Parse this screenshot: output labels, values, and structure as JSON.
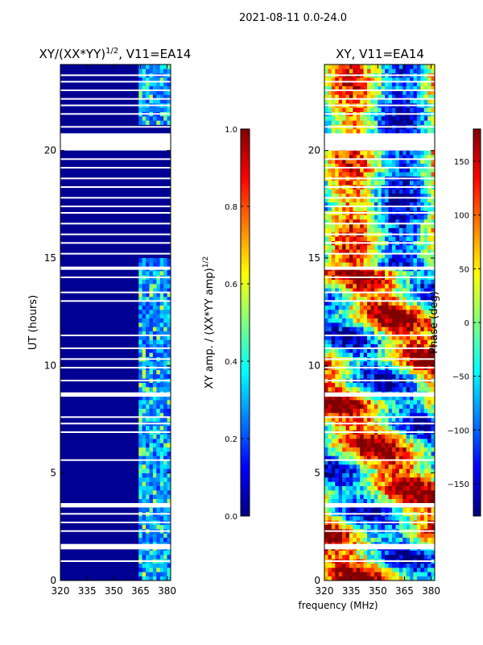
{
  "suptitle": "2021-08-11 0.0-24.0",
  "colormap": [
    "#00007f",
    "#0000ff",
    "#007fff",
    "#00ffff",
    "#7fff7f",
    "#ffff00",
    "#ff7f00",
    "#ff0000",
    "#7f0000"
  ],
  "chart_data": [
    {
      "type": "heatmap",
      "title_main": "XY/(XX*YY)",
      "title_sup": "1/2",
      "title_rest": ", V11=EA14",
      "xlabel": "",
      "ylabel": "UT (hours)",
      "xlim": [
        320,
        382
      ],
      "ylim": [
        0,
        24
      ],
      "xticks": [
        "320",
        "335",
        "350",
        "365",
        "380"
      ],
      "xtick_values": [
        320,
        335,
        350,
        365,
        380
      ],
      "yticks": [
        "0",
        "5",
        "10",
        "15",
        "20"
      ],
      "ytick_values": [
        0,
        5,
        10,
        15,
        20
      ],
      "data_band_mhz": [
        364,
        381
      ],
      "background_value": 0.02,
      "colorbar": {
        "label_main": "XY amp. / (XX*YY amp)",
        "label_sup": "1/2",
        "range": [
          0.0,
          1.0
        ],
        "ticks": [
          "0.0",
          "0.2",
          "0.4",
          "0.6",
          "0.8",
          "1.0"
        ],
        "tick_values": [
          0.0,
          0.2,
          0.4,
          0.6,
          0.8,
          1.0
        ]
      }
    },
    {
      "type": "heatmap",
      "title_main": "XY, V11=EA14",
      "xlabel": "frequency (MHz)",
      "ylabel": "",
      "xlim": [
        320,
        382
      ],
      "ylim": [
        0,
        24
      ],
      "xticks": [
        "320",
        "335",
        "350",
        "365",
        "380"
      ],
      "xtick_values": [
        320,
        335,
        350,
        365,
        380
      ],
      "yticks": [
        "0",
        "5",
        "10",
        "15",
        "20"
      ],
      "ytick_values": [
        0,
        5,
        10,
        15,
        20
      ],
      "colorbar": {
        "label_main": "Phase (deg)",
        "range": [
          -180,
          180
        ],
        "ticks": [
          "−150",
          "−100",
          "−50",
          "0",
          "50",
          "100",
          "150"
        ],
        "tick_values": [
          -150,
          -100,
          -50,
          0,
          50,
          100,
          150
        ]
      }
    }
  ],
  "data_gaps_hours": [
    [
      1.45,
      1.7
    ],
    [
      3.4,
      3.6
    ],
    [
      8.55,
      8.75
    ],
    [
      14.45,
      14.6
    ],
    [
      20.0,
      20.8
    ]
  ],
  "flag_lines_hours": [
    0.9,
    2.3,
    2.7,
    3.1,
    5.6,
    6.9,
    7.3,
    7.6,
    9.3,
    9.9,
    10.3,
    10.8,
    11.4,
    13.0,
    13.4,
    14.1,
    15.2,
    15.7,
    16.1,
    16.6,
    17.1,
    17.4,
    17.8,
    18.3,
    18.7,
    19.2,
    19.6,
    21.1,
    21.7,
    22.1,
    22.4,
    22.8,
    23.2,
    23.5
  ]
}
